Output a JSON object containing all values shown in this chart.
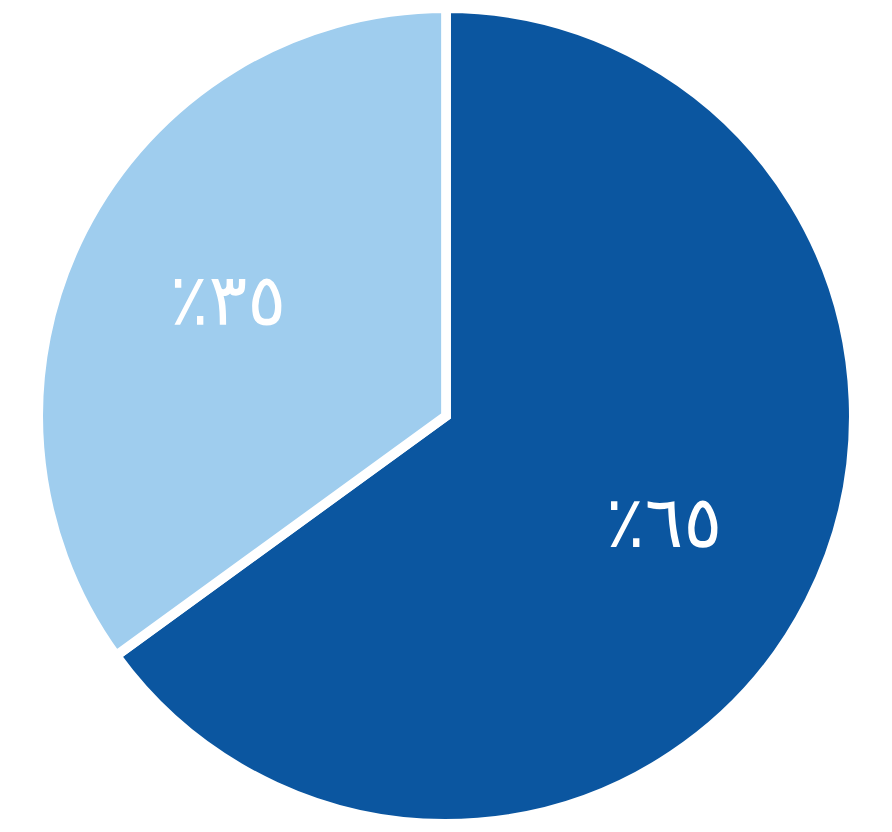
{
  "chart_data": {
    "type": "pie",
    "categories": [
      null,
      null
    ],
    "values": [
      65,
      35
    ],
    "colors": [
      "#0b56a0",
      "#9fcdee"
    ],
    "value_labels": [
      "٪٦٥",
      "٪٣٥"
    ]
  }
}
